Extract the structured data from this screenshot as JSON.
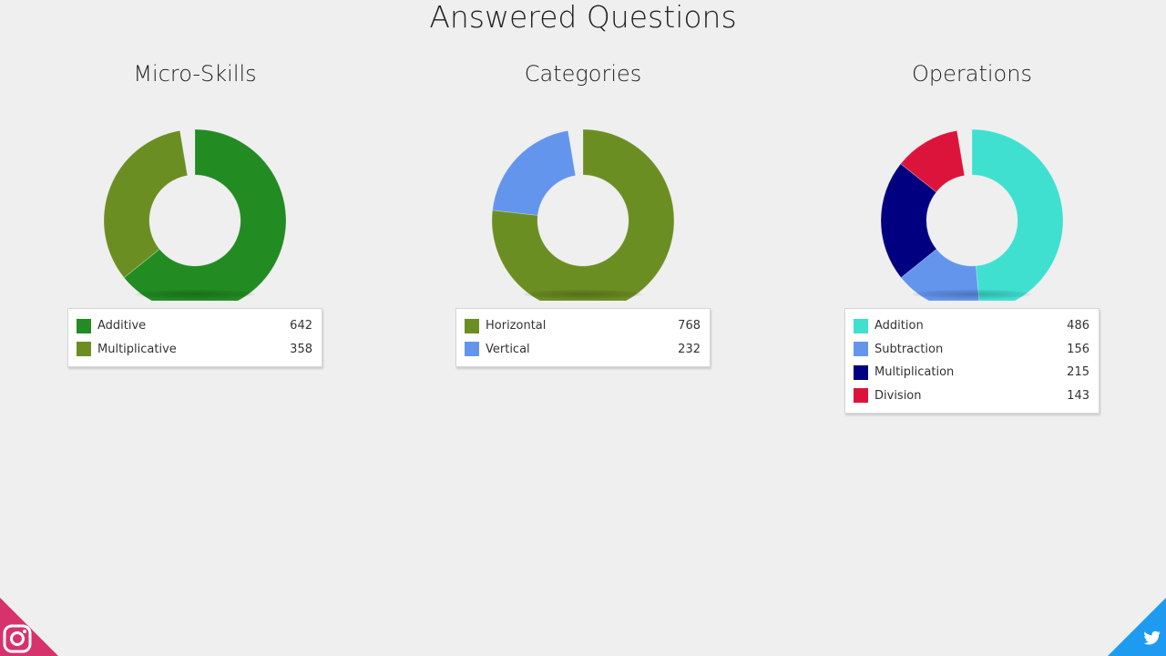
{
  "page": {
    "title": "Answered Questions"
  },
  "chart_data": [
    {
      "type": "pie",
      "title": "Micro-Skills",
      "categories": [
        "Additive",
        "Multiplicative"
      ],
      "values": [
        642,
        358
      ],
      "colors": [
        "#228b22",
        "#6b8e23"
      ],
      "legend": "bottom"
    },
    {
      "type": "pie",
      "title": "Categories",
      "categories": [
        "Horizontal",
        "Vertical"
      ],
      "values": [
        768,
        232
      ],
      "colors": [
        "#6b8e23",
        "#6495ed"
      ],
      "legend": "bottom"
    },
    {
      "type": "pie",
      "title": "Operations",
      "categories": [
        "Addition",
        "Subtraction",
        "Multiplication",
        "Division"
      ],
      "values": [
        486,
        156,
        215,
        143
      ],
      "colors": [
        "#40e0d0",
        "#6495ed",
        "#000080",
        "#dc143c"
      ],
      "legend": "bottom"
    }
  ],
  "social": {
    "left_icon": "instagram-icon",
    "right_icon": "twitter-icon",
    "left_color": "#d6336c",
    "right_color": "#1d9bf0"
  }
}
